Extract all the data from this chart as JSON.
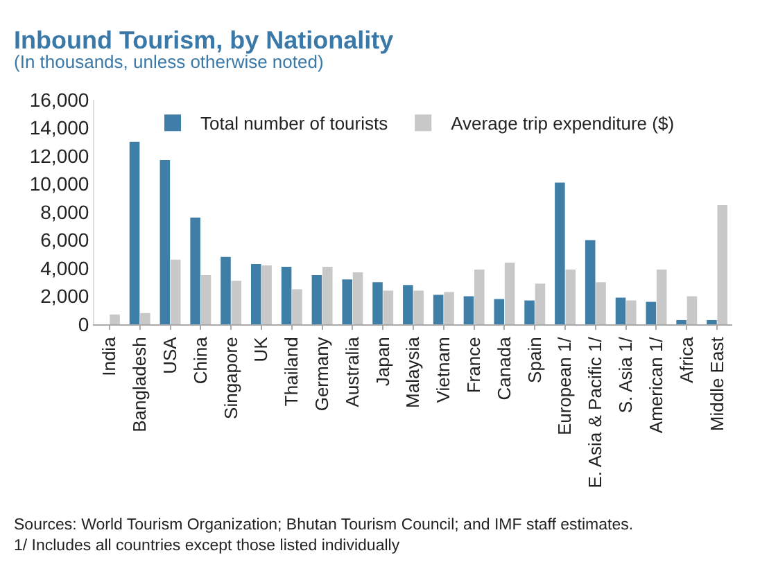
{
  "chart_data": {
    "type": "bar",
    "title": "Inbound Tourism, by Nationality",
    "subtitle": "(In thousands, unless otherwise noted)",
    "categories": [
      "India",
      "Bangladesh",
      "USA",
      "China",
      "Singapore",
      "UK",
      "Thailand",
      "Germany",
      "Australia",
      "Japan",
      "Malaysia",
      "Vietnam",
      "France",
      "Canada",
      "Spain",
      "European 1/",
      "E. Asia & Pacific 1/",
      "S. Asia 1/",
      "American 1/",
      "Africa",
      "Middle East"
    ],
    "series": [
      {
        "name": "Total number of tourists",
        "color": "#3f7ea6",
        "values": [
          0,
          13000,
          11700,
          7600,
          4800,
          4300,
          4100,
          3500,
          3200,
          3000,
          2800,
          2100,
          2000,
          1800,
          1700,
          10100,
          6000,
          1900,
          1600,
          300,
          300
        ]
      },
      {
        "name": "Average trip expenditure ($)",
        "color": "#c8c8c8",
        "values": [
          700,
          800,
          4600,
          3500,
          3100,
          4200,
          2500,
          4100,
          3700,
          2400,
          2400,
          2300,
          3900,
          4400,
          2900,
          3900,
          3000,
          1700,
          3900,
          2000,
          8500
        ]
      }
    ],
    "ylim": [
      0,
      16000
    ],
    "yticks": [
      {
        "value": 0,
        "label": "0"
      },
      {
        "value": 2000,
        "label": "2,000"
      },
      {
        "value": 4000,
        "label": "4,000"
      },
      {
        "value": 6000,
        "label": "6,000"
      },
      {
        "value": 8000,
        "label": "8,000"
      },
      {
        "value": 10000,
        "label": "10,000"
      },
      {
        "value": 12000,
        "label": "12,000"
      },
      {
        "value": 14000,
        "label": "14,000"
      },
      {
        "value": 16000,
        "label": "16,000"
      }
    ],
    "grid": false,
    "legend": "top",
    "annotations": [
      "Sources: World Tourism Organization; Bhutan Tourism Council; and IMF staff estimates.",
      "1/ Includes all countries except those listed individually"
    ]
  }
}
